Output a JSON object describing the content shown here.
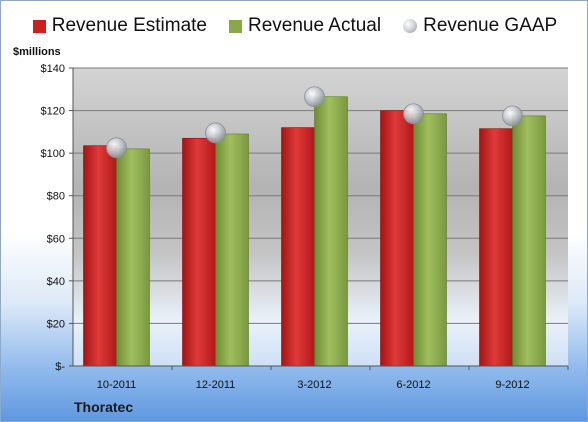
{
  "colors": {
    "estimate": "#cc1f1f",
    "actual": "#89a84a",
    "gaap": "#c0c4cb"
  },
  "legend": {
    "estimate": "Revenue Estimate",
    "actual": "Revenue Actual",
    "gaap": "Revenue GAAP"
  },
  "unit_label": "$millions",
  "company": "Thoratec",
  "chart_data": {
    "type": "bar",
    "categories": [
      "10-2011",
      "12-2011",
      "3-2012",
      "6-2012",
      "9-2012"
    ],
    "series": [
      {
        "name": "Revenue Estimate",
        "values": [
          103.5,
          107,
          112,
          120,
          111.5
        ]
      },
      {
        "name": "Revenue Actual",
        "values": [
          102,
          109,
          126.5,
          118.5,
          117.5
        ]
      },
      {
        "name": "Revenue GAAP",
        "type": "scatter",
        "values": [
          102.5,
          109.5,
          126.5,
          118.5,
          117.5
        ]
      }
    ],
    "ylabel": "$millions",
    "ylim": [
      0,
      140
    ],
    "yticks": [
      0,
      20,
      40,
      60,
      80,
      100,
      120,
      140
    ],
    "ytick_labels": [
      "$-",
      "$20",
      "$40",
      "$60",
      "$80",
      "$100",
      "$120",
      "$140"
    ],
    "grid": true,
    "legend_position": "top"
  }
}
